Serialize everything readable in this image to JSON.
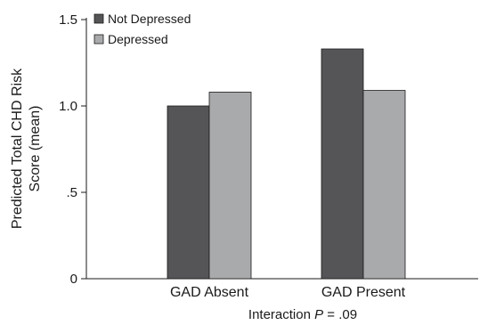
{
  "chart_data": {
    "type": "bar",
    "categories": [
      "GAD Absent",
      "GAD Present"
    ],
    "series": [
      {
        "name": "Not Depressed",
        "values": [
          1.0,
          1.33
        ],
        "color": "#555558"
      },
      {
        "name": "Depressed",
        "values": [
          1.08,
          1.09
        ],
        "color": "#a9aaac"
      }
    ],
    "ylabel_lines": [
      "Predicted Total CHD Risk",
      "Score (mean)"
    ],
    "xlabel": {
      "prefix": "Interaction ",
      "italic": "P",
      "suffix": " = .09"
    },
    "yticks": [
      {
        "value": 0,
        "label": "0"
      },
      {
        "value": 0.5,
        "label": ".5"
      },
      {
        "value": 1.0,
        "label": "1.0"
      },
      {
        "value": 1.5,
        "label": "1.5"
      }
    ],
    "ylim": [
      0,
      1.5
    ],
    "grid": false,
    "legend_position": "top-left"
  }
}
